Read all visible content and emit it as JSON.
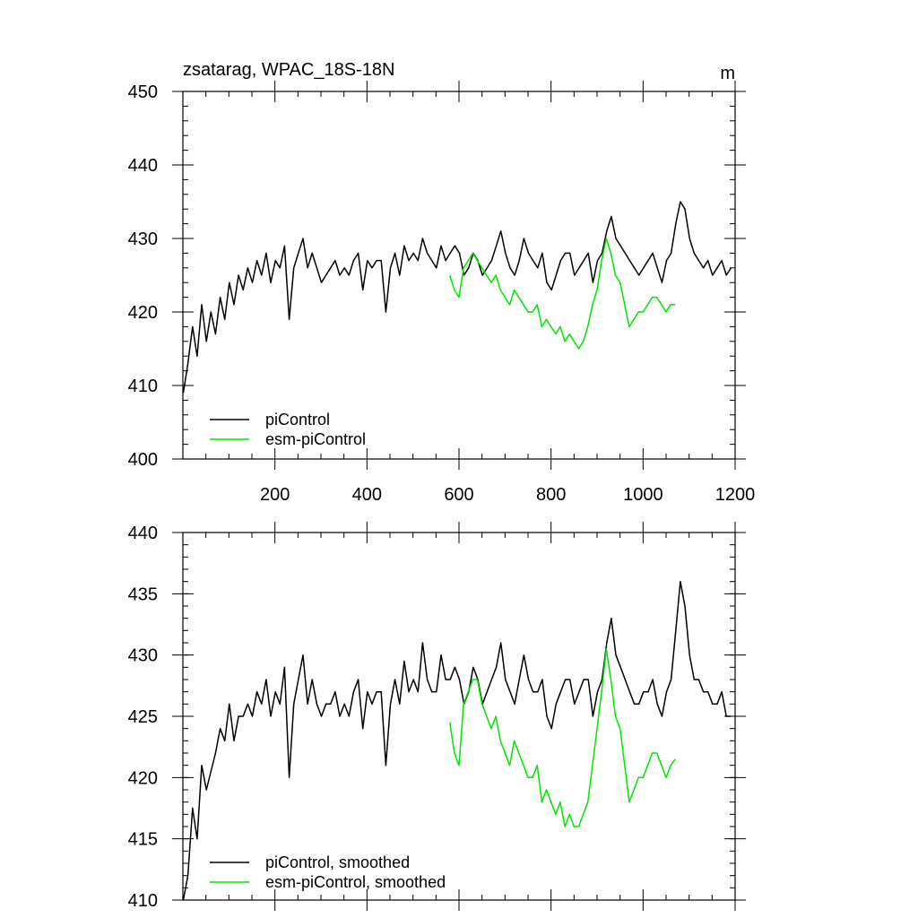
{
  "chart_data": [
    {
      "type": "line",
      "title_left": "zsatarag, WPAC_18S-18N",
      "title_right": "m",
      "xlim": [
        0,
        1200
      ],
      "ylim": [
        400,
        450
      ],
      "xticks": [
        200,
        400,
        600,
        800,
        1000,
        1200
      ],
      "xtick_labels": [
        "200",
        "400",
        "600",
        "800",
        "1000",
        "1200"
      ],
      "yticks": [
        400,
        410,
        420,
        430,
        440,
        450
      ],
      "ytick_labels": [
        "400",
        "410",
        "420",
        "430",
        "440",
        "450"
      ],
      "legend_position": "bottom-left",
      "series": [
        {
          "name": "piControl",
          "color": "#000000",
          "x_start": 1,
          "x_step": 10,
          "values": [
            409,
            413,
            418,
            414,
            421,
            416,
            420,
            417,
            422,
            419,
            424,
            421,
            425,
            423,
            426,
            424,
            427,
            425,
            428,
            424,
            427,
            426,
            429,
            419,
            426,
            428,
            430,
            426,
            428,
            426,
            424,
            425,
            426,
            427,
            425,
            426,
            425,
            427,
            428,
            423,
            427,
            426,
            427,
            427,
            420,
            426,
            428,
            425,
            429,
            427,
            428,
            427,
            430,
            428,
            427,
            426,
            429,
            427,
            428,
            429,
            428,
            425,
            426,
            428,
            427,
            425,
            426,
            427,
            429,
            431,
            428,
            426,
            425,
            427,
            430,
            428,
            427,
            426,
            428,
            424,
            423,
            425,
            427,
            428,
            428,
            425,
            426,
            427,
            428,
            424,
            427,
            428,
            431,
            433,
            430,
            429,
            428,
            427,
            426,
            425,
            426,
            427,
            428,
            426,
            424,
            427,
            428,
            432,
            435,
            434,
            430,
            428,
            427,
            426,
            427,
            425,
            426,
            427,
            425,
            426
          ],
          "legend_label": "piControl"
        },
        {
          "name": "esm-piControl",
          "color": "#00e600",
          "x_start": 580,
          "x_step": 10,
          "values": [
            425,
            423,
            422,
            426,
            427,
            428,
            427,
            426,
            425,
            424,
            425,
            423,
            422,
            421,
            423,
            422,
            421,
            420,
            420,
            421,
            418,
            419,
            418,
            417,
            418,
            416,
            417,
            416,
            415,
            416,
            418,
            421,
            423,
            427,
            430,
            428,
            425,
            424,
            421,
            418,
            419,
            420,
            420,
            421,
            422,
            422,
            421,
            420,
            421,
            421
          ],
          "legend_label": "esm-piControl"
        }
      ]
    },
    {
      "type": "line",
      "xlim": [
        0,
        1200
      ],
      "ylim": [
        410,
        440
      ],
      "xticks": [
        200,
        400,
        600,
        800,
        1000,
        1200
      ],
      "yticks": [
        410,
        415,
        420,
        425,
        430,
        435,
        440
      ],
      "ytick_labels": [
        "410",
        "415",
        "420",
        "425",
        "430",
        "435",
        "440"
      ],
      "legend_position": "bottom-left",
      "series": [
        {
          "name": "piControl, smoothed",
          "color": "#000000",
          "x_start": 1,
          "x_step": 10,
          "values": [
            409.5,
            412,
            417.5,
            415,
            421,
            419,
            420.5,
            422,
            424,
            423,
            426,
            423,
            425,
            425,
            426,
            425,
            427,
            426,
            428,
            425,
            427,
            426,
            429,
            420,
            426,
            428,
            430,
            426,
            428,
            426,
            425,
            426,
            426,
            427,
            425,
            426,
            425,
            427,
            428,
            424,
            427,
            426,
            427,
            427,
            421,
            426,
            428,
            426,
            429.5,
            427,
            428,
            427,
            431,
            428,
            427,
            427,
            430,
            428,
            428,
            429,
            428,
            426,
            427,
            429,
            428,
            426,
            427,
            428,
            429,
            431,
            428,
            427,
            426,
            428,
            430,
            428,
            427,
            427,
            428,
            425,
            424,
            426,
            427,
            428,
            428,
            426,
            427,
            428,
            428,
            425,
            427,
            428,
            431,
            433,
            430,
            429,
            428,
            427,
            426,
            426,
            427,
            427,
            428,
            426,
            425,
            427,
            428,
            432,
            436,
            434,
            430,
            428,
            428,
            427,
            427,
            426,
            426,
            427,
            425,
            425
          ],
          "legend_label": "piControl, smoothed"
        },
        {
          "name": "esm-piControl, smoothed",
          "color": "#00e600",
          "x_start": 580,
          "x_step": 10,
          "values": [
            424.5,
            422,
            421,
            426,
            427,
            428,
            428,
            426,
            425,
            424,
            425,
            423,
            422,
            421,
            423,
            422,
            421,
            420,
            420,
            421,
            418,
            419,
            418,
            417,
            418,
            416,
            417,
            416,
            416,
            417,
            418,
            421,
            424,
            427,
            430.5,
            428,
            425,
            424,
            421,
            418,
            419,
            420,
            420,
            421,
            422,
            422,
            421,
            420,
            421,
            421.5
          ],
          "legend_label": "esm-piControl, smoothed"
        }
      ]
    }
  ]
}
